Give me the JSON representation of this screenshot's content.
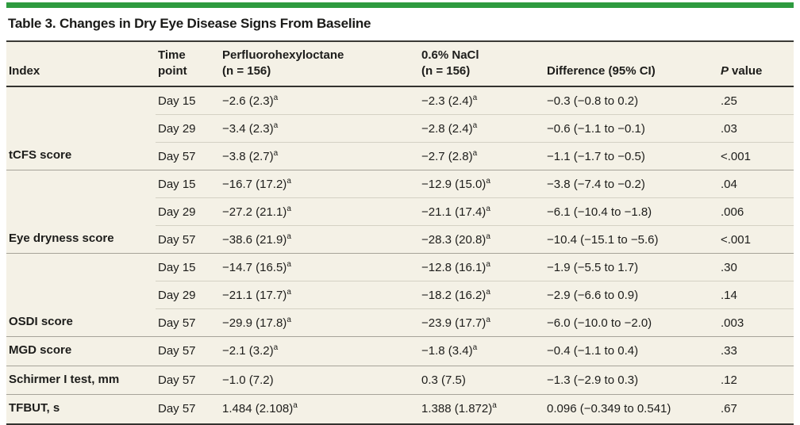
{
  "title": "Table 3. Changes in Dry Eye Disease Signs From Baseline",
  "accent_color": "#2e9b3f",
  "table_background": "#f4f1e6",
  "headers": {
    "index": "Index",
    "time": "Time\npoint",
    "pfho": "Perfluorohexyloctane\n(n = 156)",
    "nacl": "0.6% NaCl\n(n = 156)",
    "difference": "Difference (95% CI)",
    "p_italic": "P",
    "p_rest": "value"
  },
  "groups": [
    {
      "index": "tCFS score",
      "rows": [
        {
          "time": "Day 15",
          "pfho": "−2.6 (2.3)",
          "pfho_sup": "a",
          "nacl": "−2.3 (2.4)",
          "nacl_sup": "a",
          "diff": "−0.3 (−0.8 to 0.2)",
          "p": ".25"
        },
        {
          "time": "Day 29",
          "pfho": "−3.4 (2.3)",
          "pfho_sup": "a",
          "nacl": "−2.8 (2.4)",
          "nacl_sup": "a",
          "diff": "−0.6 (−1.1 to −0.1)",
          "p": ".03"
        },
        {
          "time": "Day 57",
          "pfho": "−3.8 (2.7)",
          "pfho_sup": "a",
          "nacl": "−2.7 (2.8)",
          "nacl_sup": "a",
          "diff": "−1.1 (−1.7 to −0.5)",
          "p": "<.001"
        }
      ]
    },
    {
      "index": "Eye dryness score",
      "rows": [
        {
          "time": "Day 15",
          "pfho": "−16.7 (17.2)",
          "pfho_sup": "a",
          "nacl": "−12.9 (15.0)",
          "nacl_sup": "a",
          "diff": "−3.8 (−7.4 to −0.2)",
          "p": ".04"
        },
        {
          "time": "Day 29",
          "pfho": "−27.2 (21.1)",
          "pfho_sup": "a",
          "nacl": "−21.1 (17.4)",
          "nacl_sup": "a",
          "diff": "−6.1 (−10.4 to −1.8)",
          "p": ".006"
        },
        {
          "time": "Day 57",
          "pfho": "−38.6 (21.9)",
          "pfho_sup": "a",
          "nacl": "−28.3 (20.8)",
          "nacl_sup": "a",
          "diff": "−10.4 (−15.1 to −5.6)",
          "p": "<.001"
        }
      ]
    },
    {
      "index": "OSDI score",
      "rows": [
        {
          "time": "Day 15",
          "pfho": "−14.7 (16.5)",
          "pfho_sup": "a",
          "nacl": "−12.8 (16.1)",
          "nacl_sup": "a",
          "diff": "−1.9 (−5.5 to 1.7)",
          "p": ".30"
        },
        {
          "time": "Day 29",
          "pfho": "−21.1 (17.7)",
          "pfho_sup": "a",
          "nacl": "−18.2 (16.2)",
          "nacl_sup": "a",
          "diff": "−2.9 (−6.6 to 0.9)",
          "p": ".14"
        },
        {
          "time": "Day 57",
          "pfho": "−29.9 (17.8)",
          "pfho_sup": "a",
          "nacl": "−23.9 (17.7)",
          "nacl_sup": "a",
          "diff": "−6.0 (−10.0 to −2.0)",
          "p": ".003"
        }
      ]
    },
    {
      "index": "MGD score",
      "rows": [
        {
          "time": "Day 57",
          "pfho": "−2.1 (3.2)",
          "pfho_sup": "a",
          "nacl": "−1.8 (3.4)",
          "nacl_sup": "a",
          "diff": "−0.4 (−1.1 to 0.4)",
          "p": ".33"
        }
      ]
    },
    {
      "index": "Schirmer I test, mm",
      "rows": [
        {
          "time": "Day 57",
          "pfho": "−1.0 (7.2)",
          "nacl": "0.3 (7.5)",
          "diff": "−1.3 (−2.9 to 0.3)",
          "p": ".12"
        }
      ]
    },
    {
      "index": "TFBUT, s",
      "rows": [
        {
          "time": "Day 57",
          "pfho": "1.484 (2.108)",
          "pfho_sup": "a",
          "nacl": "1.388 (1.872)",
          "nacl_sup": "a",
          "diff": "0.096 (−0.349 to 0.541)",
          "p": ".67"
        }
      ]
    }
  ]
}
